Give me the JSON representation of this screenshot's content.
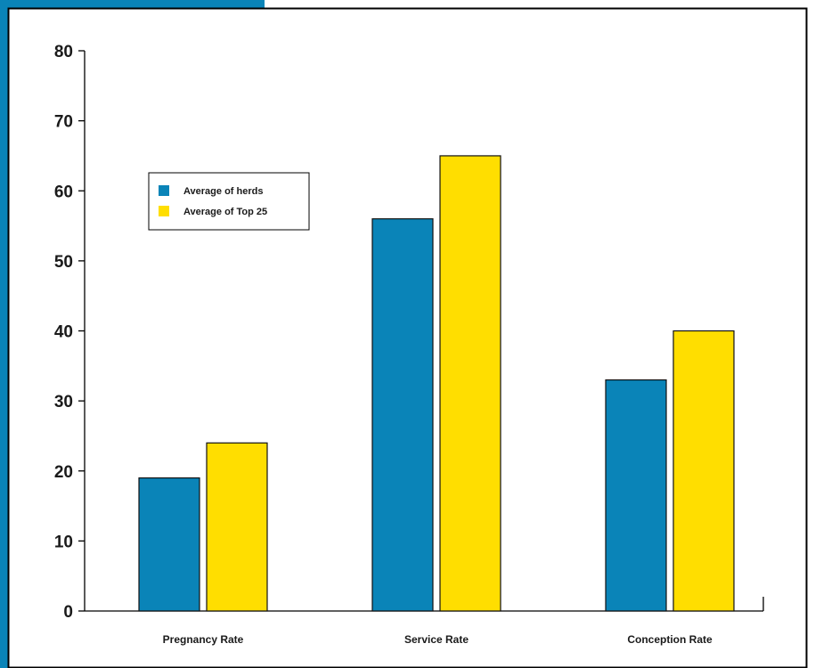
{
  "chart_data": {
    "type": "bar",
    "categories": [
      "Pregnancy Rate",
      "Service Rate",
      "Conception Rate"
    ],
    "series": [
      {
        "name": "Average of herds",
        "values": [
          19,
          56,
          33
        ],
        "color": "#0a84b8"
      },
      {
        "name": "Average of Top 25",
        "values": [
          24,
          65,
          40
        ],
        "color": "#ffde00"
      }
    ],
    "ylim": [
      0,
      80
    ],
    "yticks": [
      0,
      10,
      20,
      30,
      40,
      50,
      60,
      70,
      80
    ],
    "grid": false,
    "legend_placement": "upper-left",
    "title": "",
    "xlabel": "",
    "ylabel": ""
  },
  "colors": {
    "frame_blue": "#0a84b8",
    "border": "#000000",
    "bar_outline": "#111111"
  }
}
